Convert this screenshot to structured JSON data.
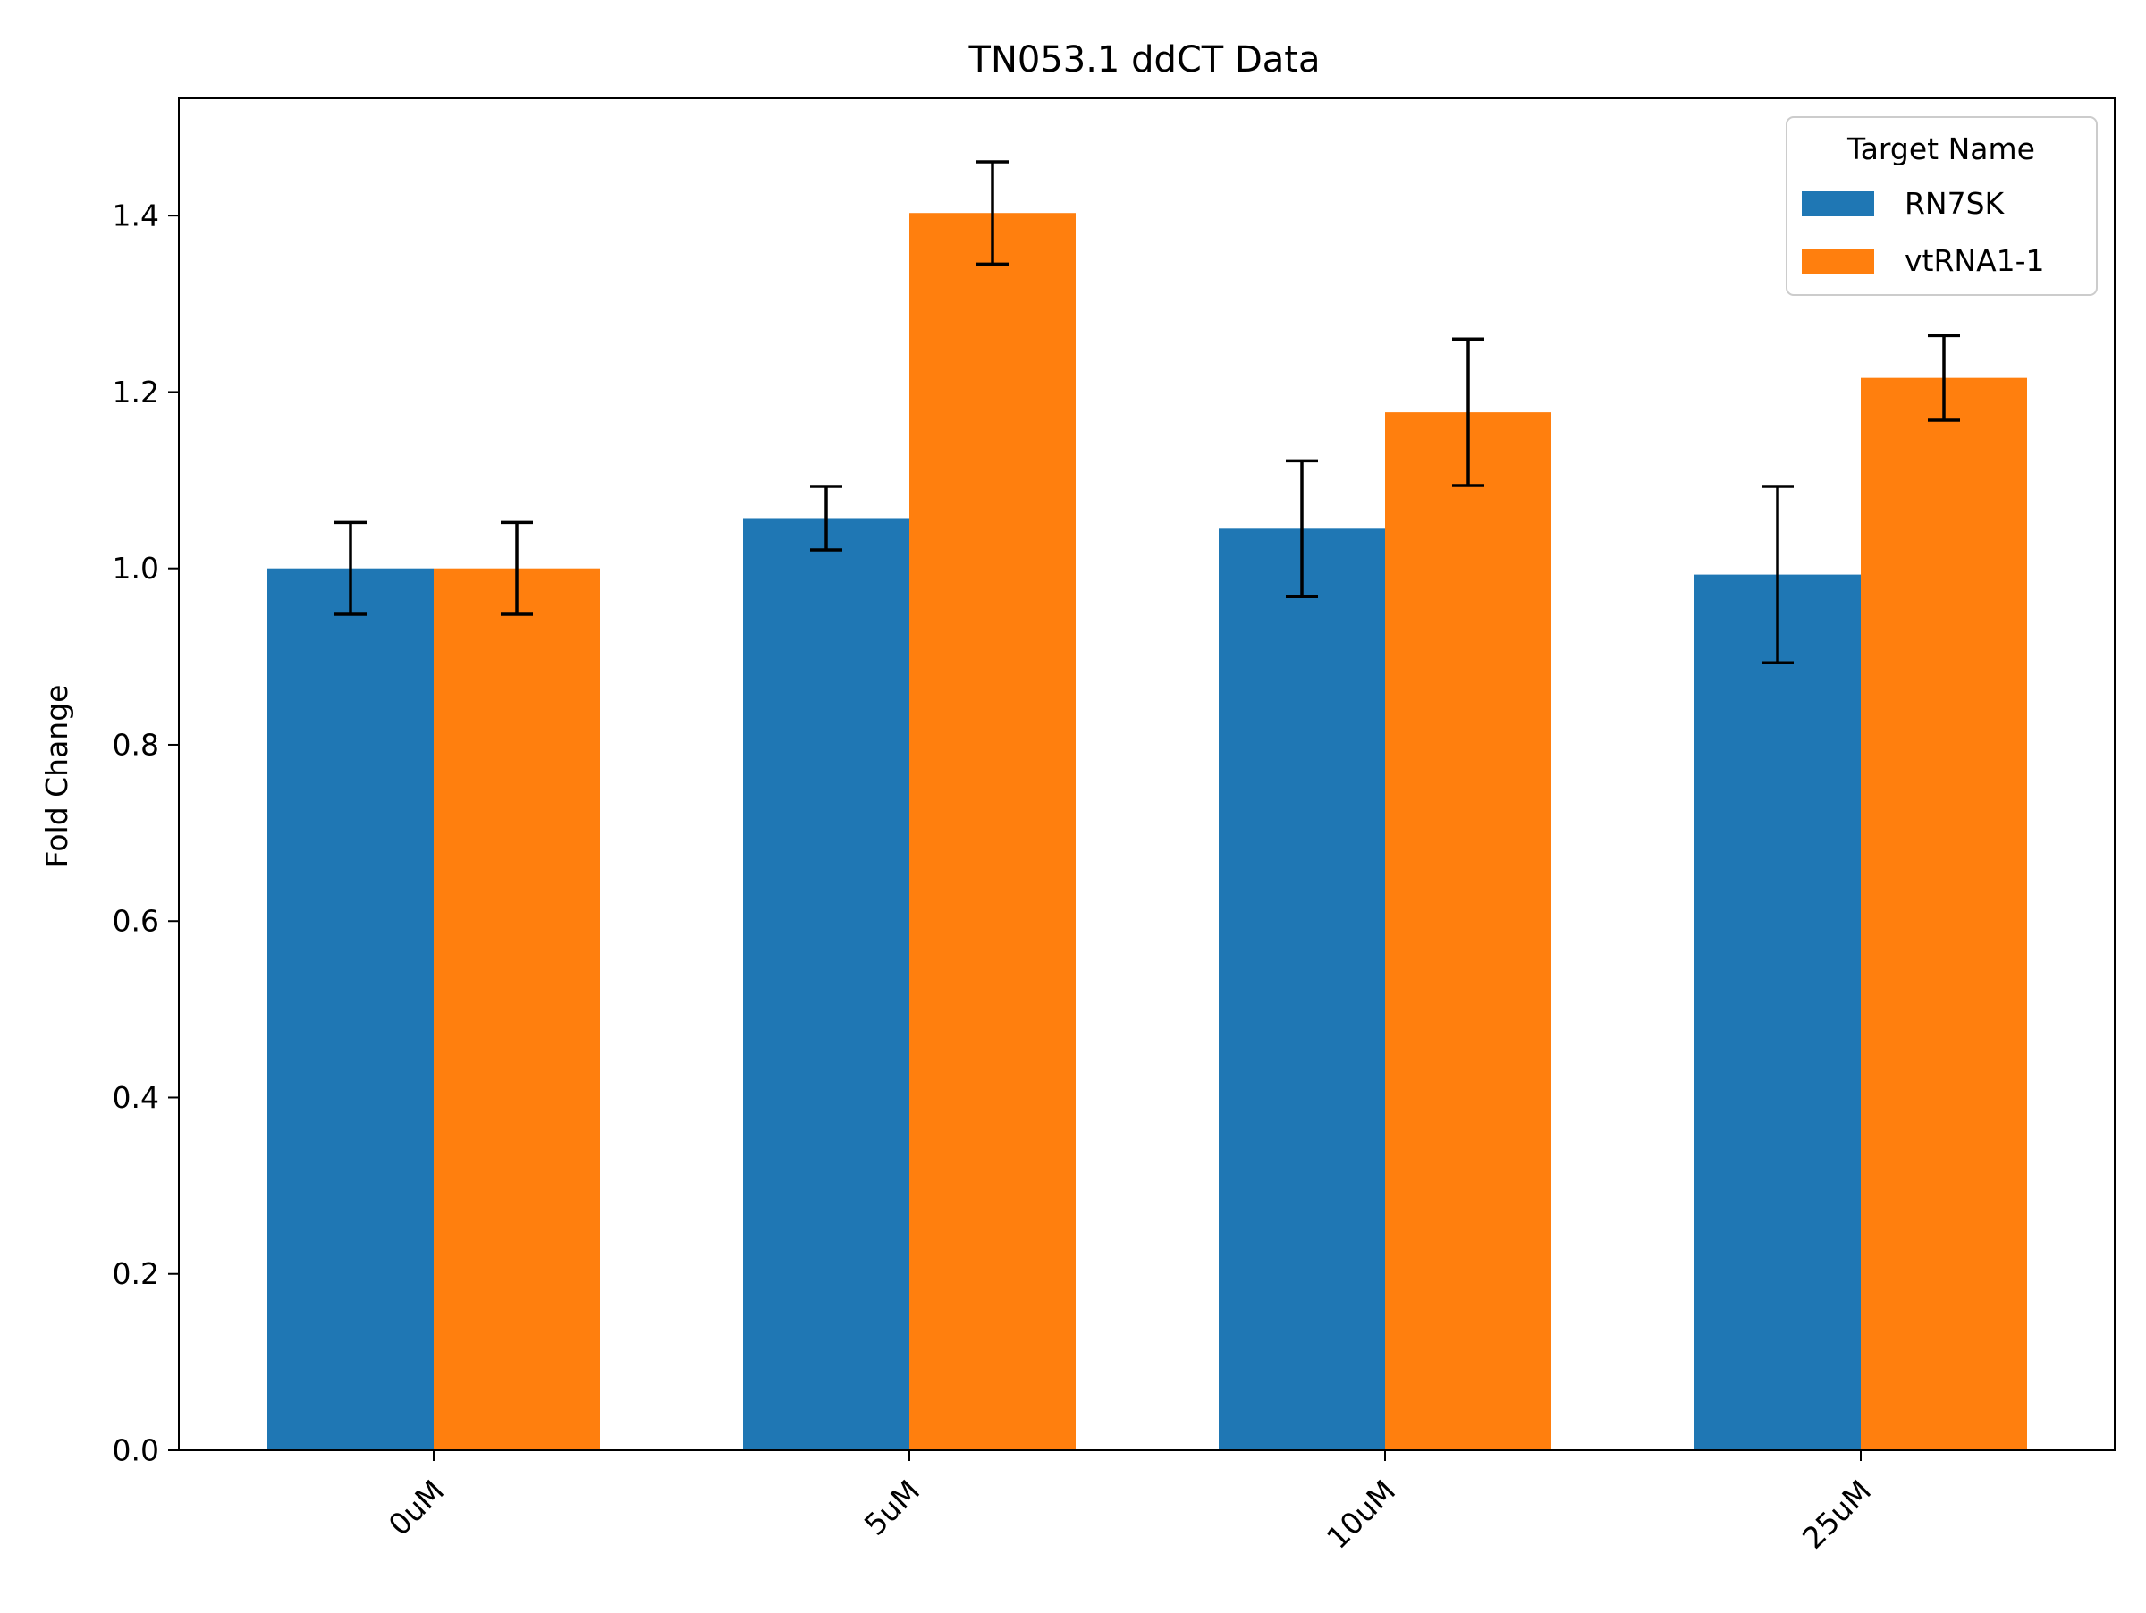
{
  "chart_data": {
    "type": "bar",
    "title": "TN053.1 ddCT Data",
    "xlabel": "",
    "ylabel": "Fold Change",
    "categories": [
      "0uM",
      "5uM",
      "10uM",
      "25uM"
    ],
    "series": [
      {
        "name": "RN7SK",
        "color": "#1f77b4",
        "values": [
          1.0,
          1.057,
          1.045,
          0.993
        ],
        "errors": [
          0.052,
          0.036,
          0.077,
          0.1
        ]
      },
      {
        "name": "vtRNA1-1",
        "color": "#ff7f0e",
        "values": [
          1.0,
          1.403,
          1.177,
          1.216
        ],
        "errors": [
          0.052,
          0.058,
          0.083,
          0.048
        ]
      }
    ],
    "ylim": [
      0,
      1.533
    ],
    "yticks": [
      0.0,
      0.2,
      0.4,
      0.6,
      0.8,
      1.0,
      1.2,
      1.4
    ],
    "ytick_labels": [
      "0.0",
      "0.2",
      "0.4",
      "0.6",
      "0.8",
      "1.0",
      "1.2",
      "1.4"
    ],
    "legend": {
      "title": "Target Name",
      "position": "top-right"
    },
    "grid": false
  }
}
